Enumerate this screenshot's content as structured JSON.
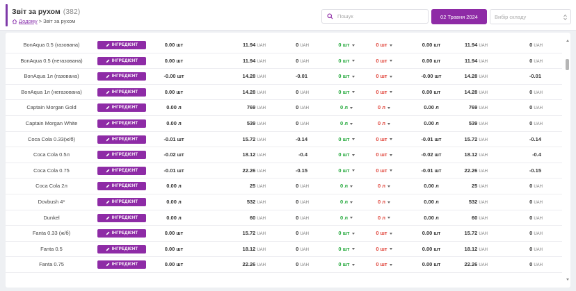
{
  "header": {
    "title": "Звіт за рухом",
    "count": "(382)",
    "breadcrumb_home": "Додому",
    "breadcrumb_sep": ">",
    "breadcrumb_current": "Звіт за рухом"
  },
  "search": {
    "placeholder": "Пошук"
  },
  "date_button": "02 Травня 2024",
  "warehouse_select": {
    "placeholder": "Вибір складу"
  },
  "badge_label": "ІНГРЕДІЄНТ",
  "currency": "UAH",
  "colors": {
    "accent": "#8e2ba6",
    "incoming": "#22a83a",
    "outgoing": "#e0443a"
  },
  "rows": [
    {
      "name": "BonAqua 0.5 (газована)",
      "qty": "0.00 шт",
      "price": "11.94",
      "sum": "0",
      "sum_unit": "UAH",
      "in": "0 шт",
      "out": "0 шт",
      "end_qty": "0.00 шт",
      "end_price": "11.94",
      "end_sum": "0",
      "end_sum_unit": "UAH"
    },
    {
      "name": "BonAqua 0.5 (негазована)",
      "qty": "0.00 шт",
      "price": "11.94",
      "sum": "0",
      "sum_unit": "UAH",
      "in": "0 шт",
      "out": "0 шт",
      "end_qty": "0.00 шт",
      "end_price": "11.94",
      "end_sum": "0",
      "end_sum_unit": "UAH"
    },
    {
      "name": "BonAqua 1л (газована)",
      "qty": "-0.00 шт",
      "price": "14.28",
      "sum": "-0.01",
      "sum_unit": "",
      "in": "0 шт",
      "out": "0 шт",
      "end_qty": "-0.00 шт",
      "end_price": "14.28",
      "end_sum": "-0.01",
      "end_sum_unit": ""
    },
    {
      "name": "BonAqua 1л (негазована)",
      "qty": "0.00 шт",
      "price": "14.28",
      "sum": "0",
      "sum_unit": "UAH",
      "in": "0 шт",
      "out": "0 шт",
      "end_qty": "0.00 шт",
      "end_price": "14.28",
      "end_sum": "0",
      "end_sum_unit": "UAH"
    },
    {
      "name": "Captain Morgan Gold",
      "qty": "0.00 л",
      "price": "769",
      "sum": "0",
      "sum_unit": "UAH",
      "in": "0 л",
      "out": "0 л",
      "end_qty": "0.00 л",
      "end_price": "769",
      "end_sum": "0",
      "end_sum_unit": "UAH"
    },
    {
      "name": "Captain Morgan White",
      "qty": "0.00 л",
      "price": "539",
      "sum": "0",
      "sum_unit": "UAH",
      "in": "0 л",
      "out": "0 л",
      "end_qty": "0.00 л",
      "end_price": "539",
      "end_sum": "0",
      "end_sum_unit": "UAH"
    },
    {
      "name": "Coca Cola 0.33(ж/б)",
      "qty": "-0.01 шт",
      "price": "15.72",
      "sum": "-0.14",
      "sum_unit": "",
      "in": "0 шт",
      "out": "0 шт",
      "end_qty": "-0.01 шт",
      "end_price": "15.72",
      "end_sum": "-0.14",
      "end_sum_unit": ""
    },
    {
      "name": "Coca Cola 0.5л",
      "qty": "-0.02 шт",
      "price": "18.12",
      "sum": "-0.4",
      "sum_unit": "",
      "in": "0 шт",
      "out": "0 шт",
      "end_qty": "-0.02 шт",
      "end_price": "18.12",
      "end_sum": "-0.4",
      "end_sum_unit": ""
    },
    {
      "name": "Coca Cola 0.75",
      "qty": "-0.01 шт",
      "price": "22.26",
      "sum": "-0.15",
      "sum_unit": "",
      "in": "0 шт",
      "out": "0 шт",
      "end_qty": "-0.01 шт",
      "end_price": "22.26",
      "end_sum": "-0.15",
      "end_sum_unit": ""
    },
    {
      "name": "Coca Cola 2л",
      "qty": "0.00 л",
      "price": "25",
      "sum": "0",
      "sum_unit": "UAH",
      "in": "0 л",
      "out": "0 л",
      "end_qty": "0.00 л",
      "end_price": "25",
      "end_sum": "0",
      "end_sum_unit": "UAH"
    },
    {
      "name": "Dovbush 4*",
      "qty": "0.00 л",
      "price": "532",
      "sum": "0",
      "sum_unit": "UAH",
      "in": "0 л",
      "out": "0 л",
      "end_qty": "0.00 л",
      "end_price": "532",
      "end_sum": "0",
      "end_sum_unit": "UAH"
    },
    {
      "name": "Dunkel",
      "qty": "0.00 л",
      "price": "60",
      "sum": "0",
      "sum_unit": "UAH",
      "in": "0 л",
      "out": "0 л",
      "end_qty": "0.00 л",
      "end_price": "60",
      "end_sum": "0",
      "end_sum_unit": "UAH"
    },
    {
      "name": "Fanta 0.33 (ж/б)",
      "qty": "0.00 шт",
      "price": "15.72",
      "sum": "0",
      "sum_unit": "UAH",
      "in": "0 шт",
      "out": "0 шт",
      "end_qty": "0.00 шт",
      "end_price": "15.72",
      "end_sum": "0",
      "end_sum_unit": "UAH"
    },
    {
      "name": "Fanta 0.5",
      "qty": "0.00 шт",
      "price": "18.12",
      "sum": "0",
      "sum_unit": "UAH",
      "in": "0 шт",
      "out": "0 шт",
      "end_qty": "0.00 шт",
      "end_price": "18.12",
      "end_sum": "0",
      "end_sum_unit": "UAH"
    },
    {
      "name": "Fanta 0.75",
      "qty": "0.00 шт",
      "price": "22.26",
      "sum": "0",
      "sum_unit": "UAH",
      "in": "0 шт",
      "out": "0 шт",
      "end_qty": "0.00 шт",
      "end_price": "22.26",
      "end_sum": "0",
      "end_sum_unit": "UAH"
    }
  ]
}
